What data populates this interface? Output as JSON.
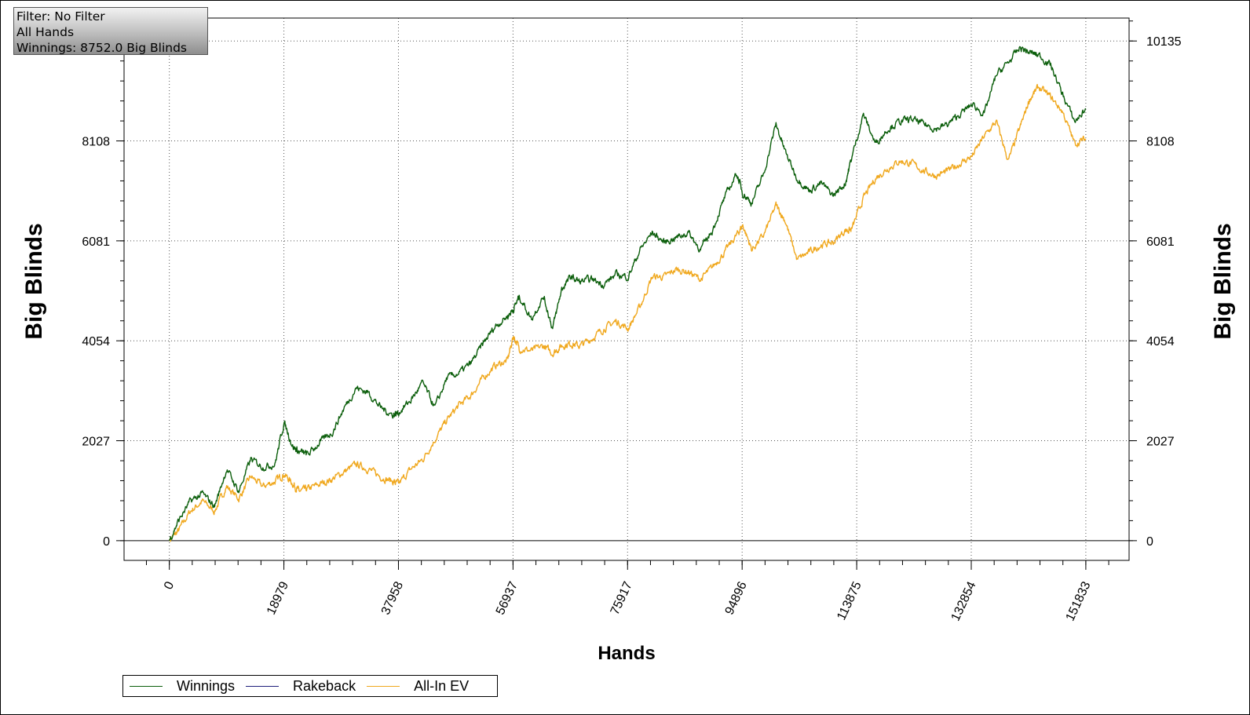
{
  "info_box": {
    "filter": "Filter: No Filter",
    "hands": "All Hands",
    "winnings": "Winnings: 8752.0 Big Blinds"
  },
  "colors": {
    "winnings": "#0b5e0b",
    "rakeback": "#1f1f7a",
    "allin_ev": "#f0a81e"
  },
  "chart_data": {
    "type": "line",
    "xlabel": "Hands",
    "ylabel_left": "Big Blinds",
    "ylabel_right": "Big Blinds",
    "x_ticks": [
      "0",
      "18979",
      "37958",
      "56937",
      "75917",
      "94896",
      "113875",
      "132854",
      "151833"
    ],
    "y_ticks": [
      "0",
      "2027",
      "4054",
      "6081",
      "8108",
      "10135"
    ],
    "y_ticks_right": [
      "0",
      "2027",
      "4054",
      "6081",
      "8108",
      "10135"
    ],
    "xlim": [
      -7500,
      159000
    ],
    "ylim": [
      -400,
      10600
    ],
    "grid": true,
    "legend_position": "bottom-left",
    "series": [
      {
        "name": "Winnings",
        "x": [
          0,
          1500,
          3500,
          5500,
          7500,
          9500,
          11500,
          13500,
          15500,
          17500,
          19000,
          20500,
          21500,
          23000,
          25000,
          27000,
          29000,
          31000,
          33000,
          35000,
          37000,
          38000,
          40000,
          42000,
          44000,
          46000,
          48000,
          50000,
          52000,
          54000,
          56000,
          57000,
          58000,
          60000,
          62000,
          63500,
          65000,
          66500,
          68000,
          70000,
          72000,
          74000,
          76000,
          78000,
          80000,
          82000,
          84000,
          86000,
          88000,
          90000,
          92000,
          94000,
          95000,
          96500,
          98500,
          100500,
          102000,
          104000,
          106000,
          108000,
          110000,
          112000,
          113000,
          115000,
          117000,
          119000,
          121000,
          123000,
          125000,
          127000,
          129000,
          131000,
          133000,
          135000,
          137000,
          139000,
          141000,
          142500,
          144000,
          146000,
          148000,
          150000,
          151833
        ],
        "values": [
          0,
          400,
          800,
          950,
          700,
          1450,
          1000,
          1650,
          1500,
          1550,
          2400,
          1900,
          1800,
          1750,
          2000,
          2200,
          2700,
          3100,
          3000,
          2700,
          2550,
          2600,
          2850,
          3200,
          2700,
          3300,
          3400,
          3600,
          4000,
          4350,
          4550,
          4700,
          4950,
          4500,
          4950,
          4300,
          5100,
          5350,
          5250,
          5300,
          5200,
          5400,
          5350,
          5900,
          6250,
          6050,
          6150,
          6250,
          5900,
          6300,
          6950,
          7450,
          7050,
          6850,
          7450,
          8450,
          7900,
          7350,
          7100,
          7250,
          7000,
          7250,
          7750,
          8650,
          8050,
          8350,
          8500,
          8550,
          8450,
          8350,
          8450,
          8650,
          8850,
          8650,
          9450,
          9700,
          10000,
          9900,
          9850,
          9650,
          9050,
          8500,
          8752
        ]
      },
      {
        "name": "Rakeback",
        "x": [],
        "values": []
      },
      {
        "name": "All-In EV",
        "x": [
          0,
          1500,
          3500,
          5500,
          7500,
          9500,
          11500,
          13500,
          15500,
          17500,
          19000,
          20500,
          21500,
          23000,
          25000,
          27000,
          29000,
          31000,
          33000,
          35000,
          37000,
          38000,
          40000,
          42000,
          44000,
          46000,
          48000,
          50000,
          52000,
          54000,
          56000,
          57000,
          58000,
          60000,
          62000,
          63500,
          65000,
          66500,
          68000,
          70000,
          72000,
          74000,
          76000,
          78000,
          80000,
          82000,
          84000,
          86000,
          88000,
          90000,
          92000,
          94000,
          95000,
          96500,
          98500,
          100500,
          102000,
          104000,
          106000,
          108000,
          110000,
          112000,
          113000,
          115000,
          117000,
          119000,
          121000,
          123000,
          125000,
          127000,
          129000,
          131000,
          133000,
          135000,
          137000,
          139000,
          141000,
          142500,
          144000,
          146000,
          148000,
          150000,
          151833
        ],
        "values": [
          0,
          200,
          600,
          800,
          600,
          1100,
          850,
          1300,
          1100,
          1200,
          1350,
          1150,
          1000,
          1050,
          1150,
          1250,
          1400,
          1550,
          1450,
          1300,
          1200,
          1150,
          1450,
          1650,
          2050,
          2450,
          2750,
          2950,
          3300,
          3550,
          3650,
          4150,
          3900,
          3850,
          3950,
          3800,
          3950,
          4000,
          3950,
          4100,
          4300,
          4450,
          4300,
          4750,
          5350,
          5350,
          5500,
          5450,
          5300,
          5550,
          5850,
          6200,
          6400,
          5900,
          6200,
          6800,
          6500,
          5700,
          5850,
          6000,
          6050,
          6300,
          6300,
          6950,
          7350,
          7550,
          7700,
          7650,
          7500,
          7400,
          7500,
          7650,
          7800,
          8200,
          8500,
          7700,
          8400,
          8950,
          9200,
          9000,
          8700,
          8050,
          8150
        ]
      }
    ]
  },
  "legend": {
    "entries": [
      "Winnings",
      "Rakeback",
      "All-In EV"
    ]
  }
}
